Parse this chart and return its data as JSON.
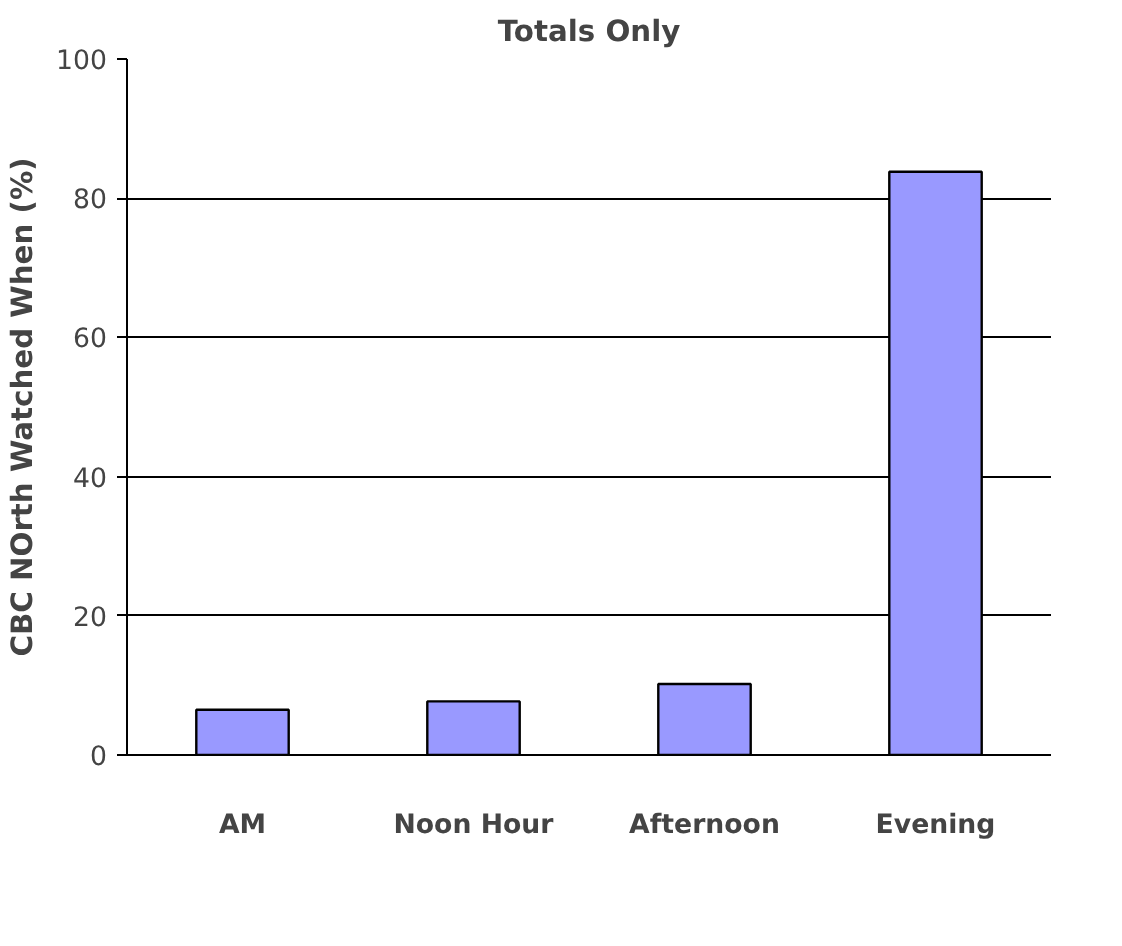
{
  "chart_data": {
    "type": "bar",
    "title": "Totals Only",
    "ylabel": "CBC NOrth Watched When (%)",
    "categories": [
      "AM",
      "Noon Hour",
      "Afternoon",
      "Evening"
    ],
    "values": [
      6.5,
      7.7,
      10.2,
      83.8
    ],
    "color": "#9999ff",
    "ylim": [
      0,
      100
    ],
    "yticks": [
      0,
      20,
      40,
      60,
      80,
      100
    ],
    "grid": "y"
  }
}
